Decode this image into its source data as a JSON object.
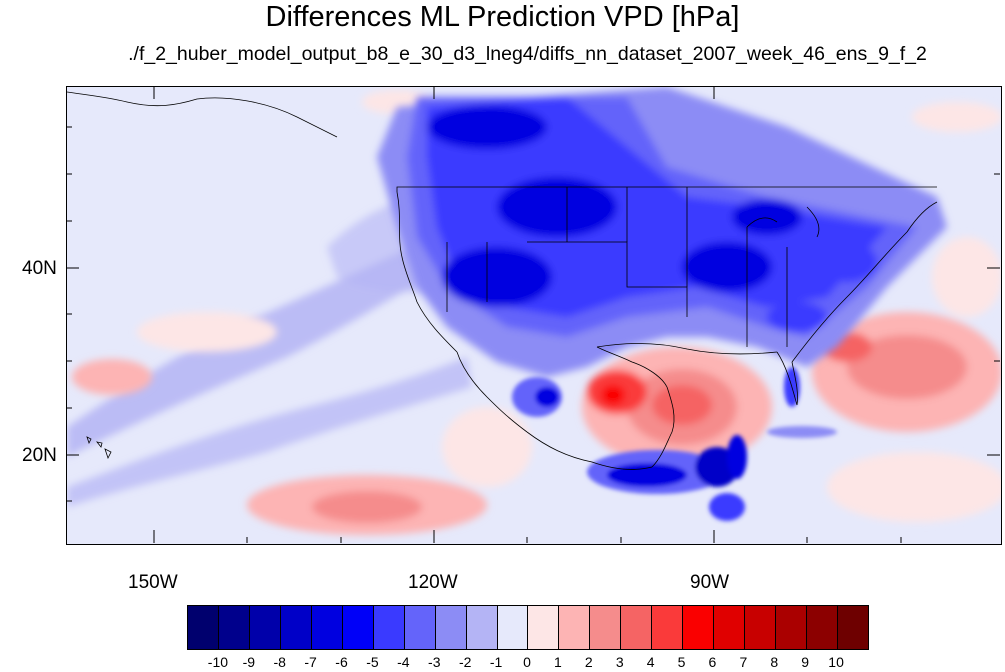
{
  "title": "Differences ML Prediction VPD [hPa]",
  "subtitle": "./f_2_huber_model_output_b8_e_30_d3_lneg4/diffs_nn_dataset_2007_week_46_ens_9_f_2",
  "axes": {
    "lat_ticks": [
      "40N",
      "20N"
    ],
    "lon_ticks": [
      "150W",
      "120W",
      "90W"
    ]
  },
  "colorbar": {
    "labels": [
      "-10",
      "-9",
      "-8",
      "-7",
      "-6",
      "-5",
      "-4",
      "-3",
      "-2",
      "-1",
      "0",
      "1",
      "2",
      "3",
      "4",
      "5",
      "6",
      "7",
      "8",
      "9",
      "10"
    ],
    "colors": [
      "#00006e",
      "#00008c",
      "#0000aa",
      "#0000c8",
      "#0000e0",
      "#0000f8",
      "#3a3aff",
      "#6464fa",
      "#8c8cf5",
      "#b4b4f5",
      "#e6e9fb",
      "#fde6e6",
      "#fdb4b4",
      "#f58c8c",
      "#f56464",
      "#fa3a3a",
      "#fa0000",
      "#e00000",
      "#c80000",
      "#aa0000",
      "#8c0000",
      "#6e0000"
    ]
  }
}
